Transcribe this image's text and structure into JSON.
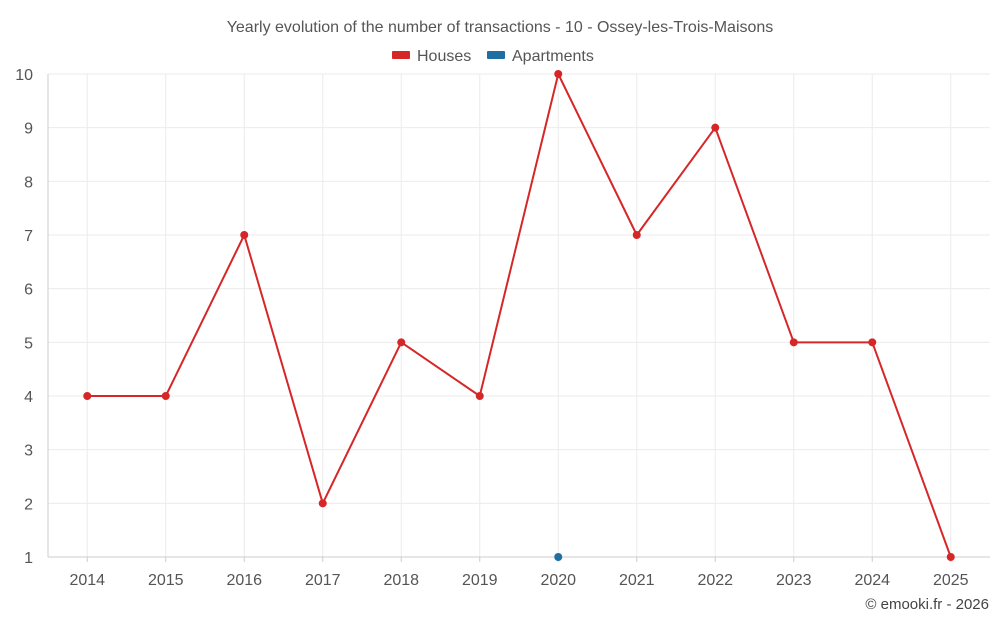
{
  "chart_data": {
    "type": "line",
    "title": "Yearly evolution of the number of transactions - 10 - Ossey-les-Trois-Maisons",
    "categories": [
      "2014",
      "2015",
      "2016",
      "2017",
      "2018",
      "2019",
      "2020",
      "2021",
      "2022",
      "2023",
      "2024",
      "2025"
    ],
    "series": [
      {
        "name": "Houses",
        "color": "#d62728",
        "values": [
          4,
          4,
          7,
          2,
          5,
          4,
          10,
          7,
          9,
          5,
          5,
          1
        ]
      },
      {
        "name": "Apartments",
        "color": "#1f6fa3",
        "values": [
          null,
          null,
          null,
          null,
          null,
          null,
          1,
          null,
          null,
          null,
          null,
          null
        ]
      }
    ],
    "ylim": [
      1,
      10
    ],
    "yticks": [
      1,
      2,
      3,
      4,
      5,
      6,
      7,
      8,
      9,
      10
    ],
    "xlabel": "",
    "ylabel": "",
    "grid": true,
    "legend_position": "top-center"
  },
  "credit": "© emooki.fr - 2026"
}
